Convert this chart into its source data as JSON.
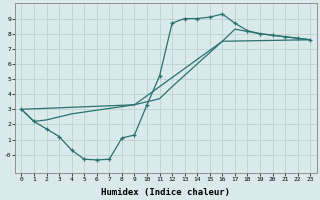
{
  "xlabel": "Humidex (Indice chaleur)",
  "bg_color": "#daeaea",
  "grid_color": "#c0d4d4",
  "line_color": "#2a7070",
  "xlim": [
    -0.5,
    23.5
  ],
  "ylim": [
    -1.2,
    10.0
  ],
  "xticks": [
    0,
    1,
    2,
    3,
    4,
    5,
    6,
    7,
    8,
    9,
    10,
    11,
    12,
    13,
    14,
    15,
    16,
    17,
    18,
    19,
    20,
    21,
    22,
    23
  ],
  "yticks": [
    0,
    1,
    2,
    3,
    4,
    5,
    6,
    7,
    8,
    9
  ],
  "ytick_labels": [
    "-0",
    "1",
    "2",
    "3",
    "4",
    "5",
    "6",
    "7",
    "8",
    "9"
  ],
  "line1_x": [
    0,
    1,
    2,
    3,
    4,
    5,
    6,
    7,
    8,
    9,
    10,
    11,
    12,
    13,
    14,
    15,
    16,
    17,
    18,
    19,
    20,
    21,
    22,
    23
  ],
  "line1_y": [
    3.0,
    2.2,
    1.7,
    1.2,
    0.3,
    -0.3,
    -0.35,
    -0.3,
    1.1,
    1.3,
    3.3,
    5.2,
    8.7,
    9.0,
    9.0,
    9.1,
    9.3,
    8.7,
    8.2,
    8.0,
    7.9,
    7.8,
    7.7,
    7.6
  ],
  "line2_x": [
    0,
    1,
    2,
    3,
    4,
    9,
    10,
    11,
    12,
    16,
    17,
    19,
    20,
    21,
    22,
    23
  ],
  "line2_y": [
    3.0,
    2.2,
    2.3,
    2.5,
    2.7,
    3.3,
    3.5,
    3.7,
    4.5,
    7.5,
    8.3,
    8.0,
    7.9,
    7.8,
    7.7,
    7.6
  ],
  "line3_x": [
    0,
    9,
    16,
    23
  ],
  "line3_y": [
    3.0,
    3.3,
    7.5,
    7.6
  ]
}
